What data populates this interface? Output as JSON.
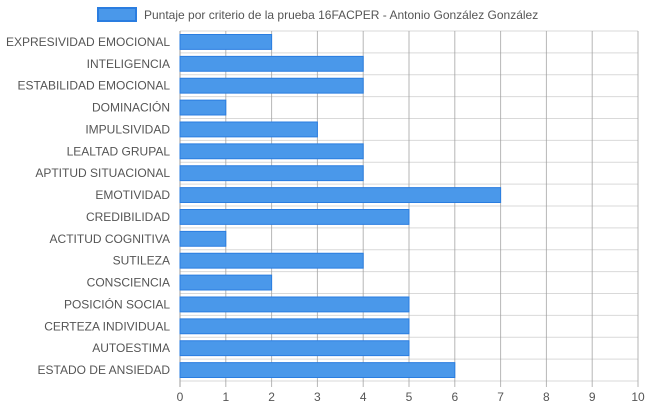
{
  "chart_data": {
    "type": "bar",
    "orientation": "horizontal",
    "legend": {
      "position": "top",
      "label": "Puntaje por criterio de la prueba 16FACPER - Antonio González González",
      "color": "#4a98ea",
      "border_color": "#2a7de0"
    },
    "categories": [
      "EXPRESIVIDAD EMOCIONAL",
      "INTELIGENCIA",
      "ESTABILIDAD EMOCIONAL",
      "DOMINACIÓN",
      "IMPULSIVIDAD",
      "LEALTAD GRUPAL",
      "APTITUD SITUACIONAL",
      "EMOTIVIDAD",
      "CREDIBILIDAD",
      "ACTITUD COGNITIVA",
      "SUTILEZA",
      "CONSCIENCIA",
      "POSICIÓN SOCIAL",
      "CERTEZA INDIVIDUAL",
      "AUTOESTIMA",
      "ESTADO DE ANSIEDAD"
    ],
    "series": [
      {
        "values": [
          2,
          4,
          4,
          1,
          3,
          4,
          4,
          7,
          5,
          1,
          4,
          2,
          5,
          5,
          5,
          6
        ],
        "color": "#4a98ea"
      }
    ],
    "xlim": [
      0,
      10
    ],
    "xticks": [
      "0",
      "1",
      "2",
      "3",
      "4",
      "5",
      "6",
      "7",
      "8",
      "9",
      "10"
    ],
    "grid": true,
    "colors": {
      "grid": "#d9d9d9",
      "grid_strong": "#9e9e9e",
      "text": "#555555"
    }
  }
}
